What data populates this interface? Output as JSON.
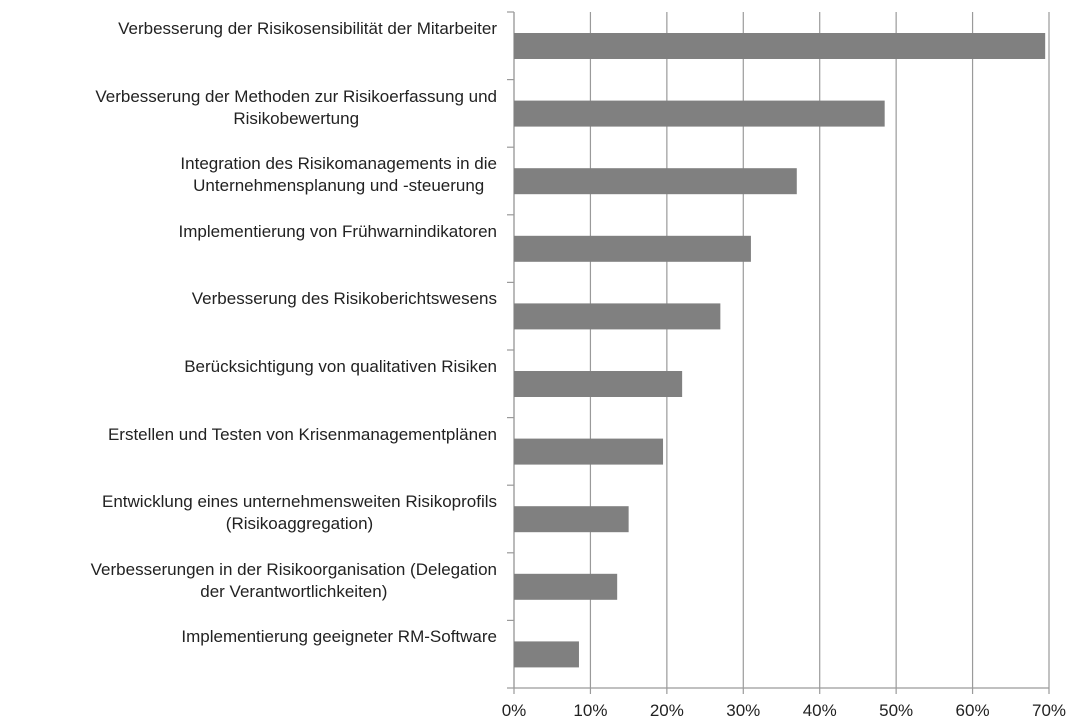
{
  "chart_data": {
    "type": "barh",
    "categories": [
      "Verbesserung der Risikosensibilität der Mitarbeiter",
      "Verbesserung der Methoden zur Risikoerfassung und\nRisikobewertung",
      "Integration des Risikomanagements in die\nUnternehmensplanung und -steuerung",
      "Implementierung von Frühwarnindikatoren",
      "Verbesserung des Risikoberichtswesens",
      "Berücksichtigung von qualitativen Risiken",
      "Erstellen und Testen von Krisenmanagementplänen",
      "Entwicklung eines unternehmensweiten Risikoprofils\n(Risikoaggregation)",
      "Verbesserungen in der Risikoorganisation (Delegation\nder Verantwortlichkeiten)",
      "Implementierung geeigneter RM-Software"
    ],
    "values": [
      69.5,
      48.5,
      37,
      31,
      27,
      22,
      19.5,
      15,
      13.5,
      8.5
    ],
    "color": "#808080",
    "xlim": [
      0,
      70
    ],
    "xticks": [
      {
        "value": 0,
        "label": "0%"
      },
      {
        "value": 10,
        "label": "10%"
      },
      {
        "value": 20,
        "label": "20%"
      },
      {
        "value": 30,
        "label": "30%"
      },
      {
        "value": 40,
        "label": "40%"
      },
      {
        "value": 50,
        "label": "50%"
      },
      {
        "value": 60,
        "label": "60%"
      },
      {
        "value": 70,
        "label": "70%"
      }
    ],
    "grid": true
  }
}
